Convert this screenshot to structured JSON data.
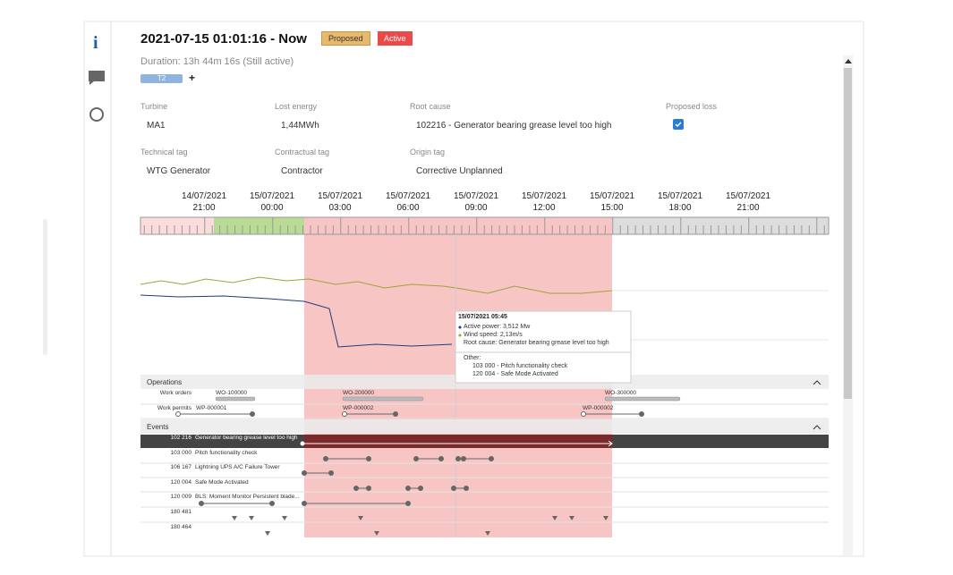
{
  "header": {
    "title": "2021-07-15 01:01:16 - Now",
    "badges": [
      "Proposed",
      "Active"
    ],
    "duration": "Duration: 13h 44m 16s (Still active)",
    "tag": "T2",
    "add": "+"
  },
  "fields": [
    {
      "label": "Turbine",
      "value": "MA1"
    },
    {
      "label": "Lost energy",
      "value": "1,44MWh"
    },
    {
      "label": "Root cause",
      "value": "102216 - Generator bearing grease level too high"
    },
    {
      "label": "Proposed loss"
    },
    {
      "label": "Technical tag",
      "value": "WTG Generator"
    },
    {
      "label": "Contractual tag",
      "value": "Contractor"
    },
    {
      "label": "Origin tag",
      "value": "Corrective Unplanned"
    }
  ],
  "timeline": [
    {
      "date": "14/07/2021",
      "time": "21:00"
    },
    {
      "date": "15/07/2021",
      "time": "00:00"
    },
    {
      "date": "15/07/2021",
      "time": "03:00"
    },
    {
      "date": "15/07/2021",
      "time": "06:00"
    },
    {
      "date": "15/07/2021",
      "time": "09:00"
    },
    {
      "date": "15/07/2021",
      "time": "12:00"
    },
    {
      "date": "15/07/2021",
      "time": "15:00"
    },
    {
      "date": "15/07/2021",
      "time": "18:00"
    },
    {
      "date": "15/07/2021",
      "time": "21:00"
    }
  ],
  "tooltip": {
    "date": "15/07/2021 05:45",
    "lines": [
      "Active power: 3,512 Mw",
      "Wind speed: 2,13m/s",
      "Root cause: Generator bearing grease level too high"
    ],
    "other_title": "Other:",
    "other": [
      "103 000 - Pitch functionality check",
      "120 004 - Safe Mode Activated"
    ]
  },
  "operations": {
    "title": "Operations",
    "rows": [
      {
        "name": "Work orders",
        "items": [
          "WO-100000",
          "WO-200000",
          "WO-300000"
        ]
      },
      {
        "name": "Work permits",
        "items": [
          "WP-000001",
          "WP-000002",
          "WP-000002"
        ]
      }
    ]
  },
  "events": {
    "title": "Events",
    "rows": [
      {
        "code": "102 216",
        "name": "Generator bearing grease level too high"
      },
      {
        "code": "103 000",
        "name": "Pitch functionality check"
      },
      {
        "code": "106 167",
        "name": "Lightning UPS A/C Failure Tower"
      },
      {
        "code": "120 004",
        "name": "Safe Mode Activated"
      },
      {
        "code": "120 009",
        "name": "BLS: Moment Monitor Persistent blade..."
      },
      {
        "code": "180 481"
      },
      {
        "code": "180 464"
      }
    ]
  }
}
